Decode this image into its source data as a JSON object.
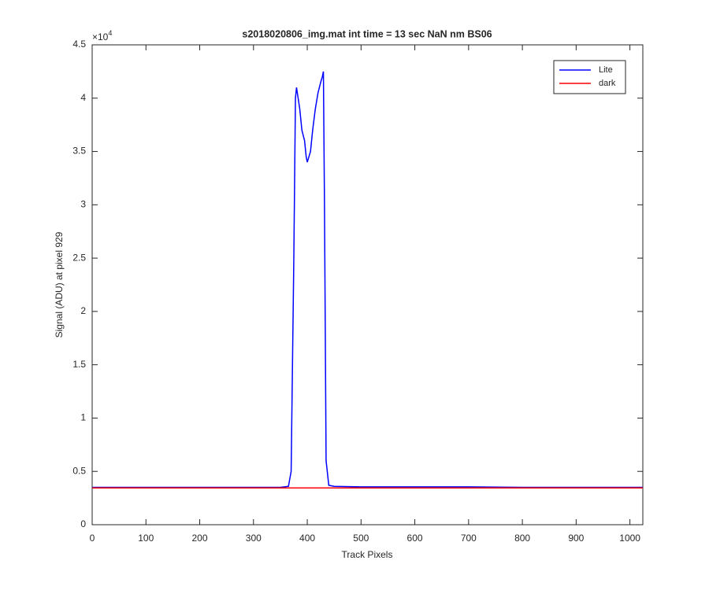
{
  "chart_data": {
    "type": "line",
    "title": "s2018020806_img.mat int time = 13 sec  NaN nm BS06",
    "x_label": "Track Pixels",
    "y_label": "Signal (ADU) at pixel 929",
    "y_exponent": {
      "base": "×10",
      "power": "4"
    },
    "xlim": [
      0,
      1024
    ],
    "xticks": [
      0,
      100,
      200,
      300,
      400,
      500,
      600,
      700,
      800,
      900,
      1000
    ],
    "ylim": [
      0,
      4.5
    ],
    "yticks": [
      0,
      0.5,
      1,
      1.5,
      2,
      2.5,
      3,
      3.5,
      4,
      4.5
    ],
    "legend": "top-right",
    "series": [
      {
        "name": "Lite",
        "color": "#0000ff",
        "x": [
          0,
          50,
          100,
          150,
          200,
          250,
          300,
          350,
          365,
          370,
          375,
          378,
          380,
          383,
          386,
          390,
          395,
          398,
          400,
          403,
          406,
          410,
          415,
          420,
          425,
          428,
          430,
          432,
          435,
          440,
          450,
          500,
          600,
          700,
          800,
          900,
          1024
        ],
        "values": [
          0.35,
          0.35,
          0.35,
          0.35,
          0.35,
          0.35,
          0.35,
          0.35,
          0.36,
          0.5,
          2.5,
          4.0,
          4.1,
          4.0,
          3.9,
          3.7,
          3.6,
          3.45,
          3.4,
          3.45,
          3.5,
          3.7,
          3.9,
          4.05,
          4.15,
          4.2,
          4.25,
          3.0,
          0.6,
          0.37,
          0.36,
          0.355,
          0.355,
          0.355,
          0.35,
          0.35,
          0.35
        ]
      },
      {
        "name": "dark",
        "color": "#ff0000",
        "x": [
          0,
          1024
        ],
        "values": [
          0.345,
          0.345
        ]
      }
    ]
  }
}
